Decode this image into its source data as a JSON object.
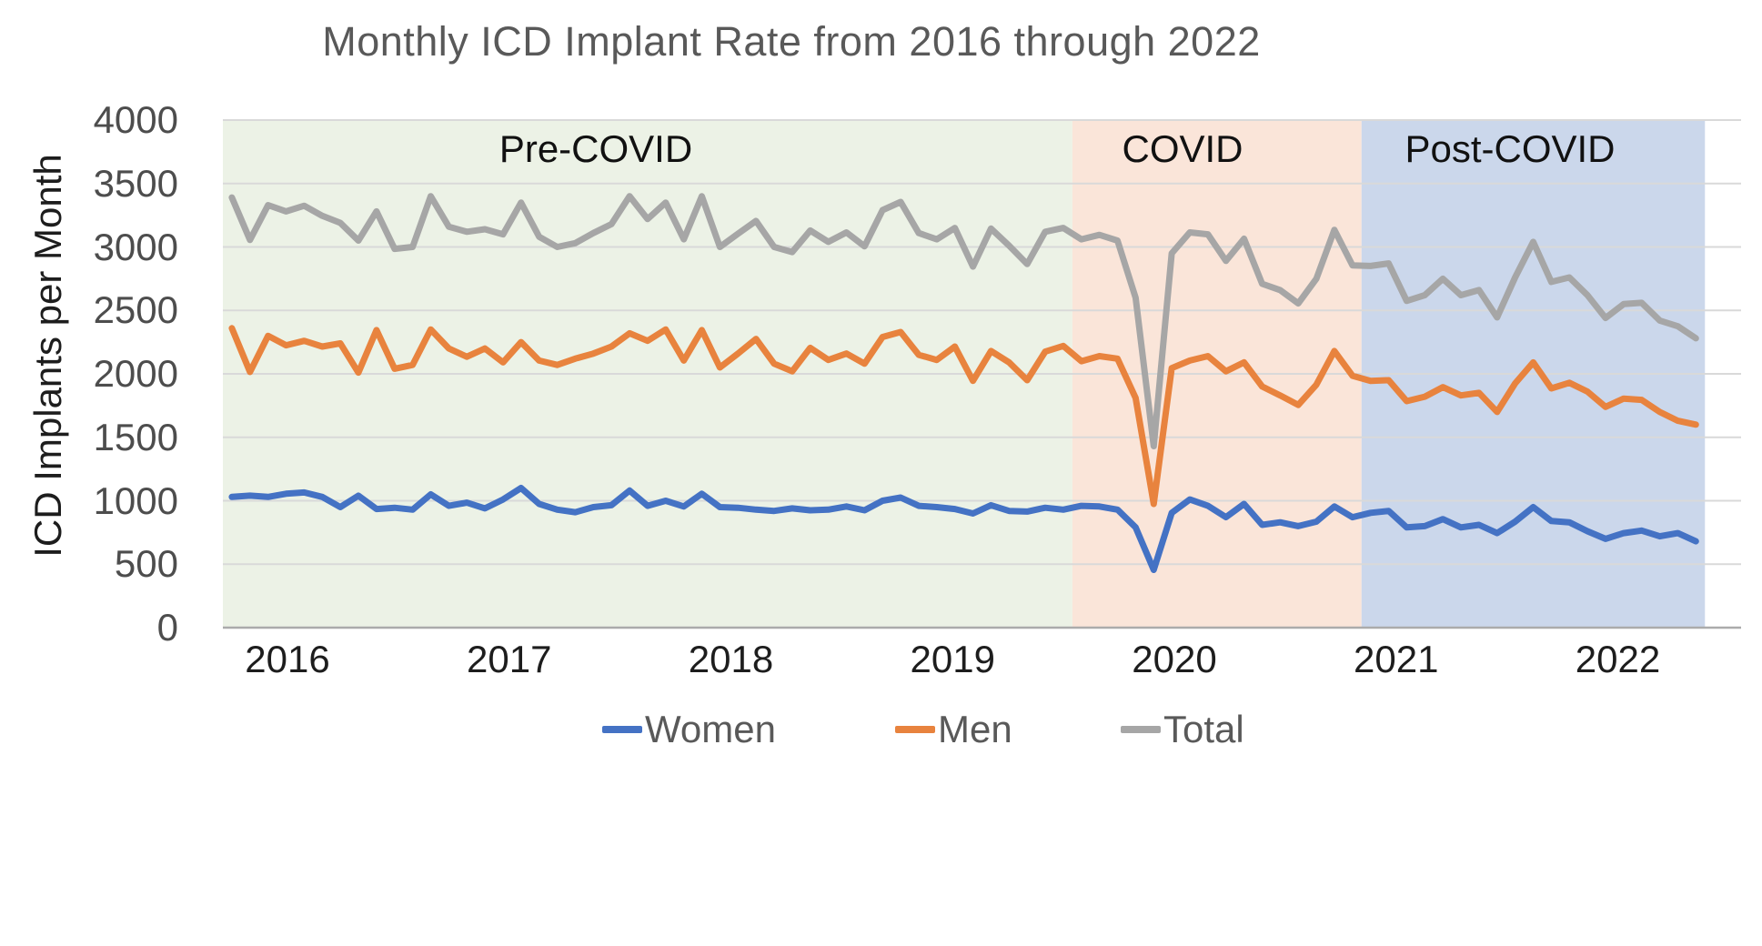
{
  "title": "Monthly ICD Implant Rate from 2016 through 2022",
  "y_axis": {
    "title": "ICD Implants per Month",
    "ticks": [
      0,
      500,
      1000,
      1500,
      2000,
      2500,
      3000,
      3500,
      4000
    ]
  },
  "x_axis": {
    "tick_labels": [
      "2016",
      "2017",
      "2018",
      "2019",
      "2020",
      "2021",
      "2022"
    ]
  },
  "regions": [
    {
      "label": "Pre-COVID",
      "start_month": "2016-01",
      "end_month": "2019-11",
      "fill": "#ECF2E6"
    },
    {
      "label": "COVID",
      "start_month": "2019-12",
      "end_month": "2021-03",
      "fill": "#FAE5D9"
    },
    {
      "label": "Post-COVID",
      "start_month": "2021-04",
      "end_month": "2022-10",
      "fill": "#CBD7EB"
    }
  ],
  "legend": [
    {
      "label": "Women",
      "color": "#4472C4"
    },
    {
      "label": "Men",
      "color": "#E8833E"
    },
    {
      "label": "Total",
      "color": "#A6A6A6"
    }
  ],
  "chart_data": {
    "type": "line",
    "title": "Monthly ICD Implant Rate from 2016 through 2022",
    "xlabel": "",
    "ylabel": "ICD Implants per Month",
    "ylim": [
      0,
      4000
    ],
    "grid": "horizontal",
    "legend_position": "bottom",
    "x": [
      "2016-01",
      "2016-02",
      "2016-03",
      "2016-04",
      "2016-05",
      "2016-06",
      "2016-07",
      "2016-08",
      "2016-09",
      "2016-10",
      "2016-11",
      "2016-12",
      "2017-01",
      "2017-02",
      "2017-03",
      "2017-04",
      "2017-05",
      "2017-06",
      "2017-07",
      "2017-08",
      "2017-09",
      "2017-10",
      "2017-11",
      "2017-12",
      "2018-01",
      "2018-02",
      "2018-03",
      "2018-04",
      "2018-05",
      "2018-06",
      "2018-07",
      "2018-08",
      "2018-09",
      "2018-10",
      "2018-11",
      "2018-12",
      "2019-01",
      "2019-02",
      "2019-03",
      "2019-04",
      "2019-05",
      "2019-06",
      "2019-07",
      "2019-08",
      "2019-09",
      "2019-10",
      "2019-11",
      "2019-12",
      "2020-01",
      "2020-02",
      "2020-03",
      "2020-04",
      "2020-05",
      "2020-06",
      "2020-07",
      "2020-08",
      "2020-09",
      "2020-10",
      "2020-11",
      "2020-12",
      "2021-01",
      "2021-02",
      "2021-03",
      "2021-04",
      "2021-05",
      "2021-06",
      "2021-07",
      "2021-08",
      "2021-09",
      "2021-10",
      "2021-11",
      "2021-12",
      "2022-01",
      "2022-02",
      "2022-03",
      "2022-04",
      "2022-05",
      "2022-06",
      "2022-07",
      "2022-08",
      "2022-09",
      "2022-10"
    ],
    "series": [
      {
        "name": "Women",
        "color": "#4472C4",
        "values": [
          1030,
          1040,
          1030,
          1055,
          1065,
          1030,
          950,
          1040,
          935,
          945,
          930,
          1050,
          960,
          985,
          940,
          1010,
          1100,
          975,
          930,
          910,
          950,
          965,
          1080,
          960,
          1000,
          955,
          1055,
          950,
          945,
          930,
          920,
          940,
          925,
          930,
          955,
          925,
          1000,
          1025,
          960,
          950,
          935,
          900,
          965,
          920,
          915,
          945,
          930,
          960,
          955,
          930,
          790,
          455,
          905,
          1010,
          960,
          870,
          975,
          810,
          830,
          800,
          835,
          955,
          870,
          905,
          920,
          790,
          800,
          855,
          790,
          810,
          745,
          835,
          950,
          840,
          830,
          760,
          700,
          745,
          765,
          720,
          745,
          680
        ]
      },
      {
        "name": "Men",
        "color": "#E8833E",
        "values": [
          2360,
          2015,
          2300,
          2225,
          2260,
          2215,
          2240,
          2010,
          2345,
          2040,
          2070,
          2350,
          2200,
          2135,
          2200,
          2090,
          2250,
          2105,
          2070,
          2120,
          2160,
          2215,
          2320,
          2260,
          2350,
          2105,
          2345,
          2050,
          2160,
          2275,
          2080,
          2020,
          2205,
          2110,
          2160,
          2080,
          2290,
          2330,
          2150,
          2110,
          2215,
          1945,
          2180,
          2090,
          1950,
          2175,
          2220,
          2100,
          2140,
          2120,
          1810,
          975,
          2045,
          2105,
          2140,
          2020,
          2090,
          1900,
          1830,
          1755,
          1915,
          2180,
          1985,
          1945,
          1950,
          1785,
          1820,
          1895,
          1830,
          1850,
          1700,
          1925,
          2090,
          1885,
          1930,
          1860,
          1740,
          1805,
          1795,
          1700,
          1630,
          1600
        ]
      },
      {
        "name": "Total",
        "color": "#A6A6A6",
        "values": [
          3390,
          3055,
          3330,
          3280,
          3325,
          3245,
          3190,
          3050,
          3280,
          2985,
          3000,
          3400,
          3160,
          3120,
          3140,
          3100,
          3350,
          3080,
          3000,
          3030,
          3110,
          3180,
          3400,
          3220,
          3350,
          3060,
          3400,
          3000,
          3105,
          3205,
          3000,
          2960,
          3130,
          3040,
          3115,
          3005,
          3290,
          3355,
          3110,
          3060,
          3150,
          2845,
          3145,
          3010,
          2865,
          3120,
          3150,
          3060,
          3095,
          3050,
          2600,
          1430,
          2950,
          3115,
          3100,
          2890,
          3065,
          2710,
          2660,
          2555,
          2750,
          3135,
          2855,
          2850,
          2870,
          2575,
          2620,
          2750,
          2620,
          2660,
          2445,
          2760,
          3040,
          2725,
          2760,
          2620,
          2440,
          2550,
          2560,
          2420,
          2375,
          2280
        ]
      }
    ]
  }
}
